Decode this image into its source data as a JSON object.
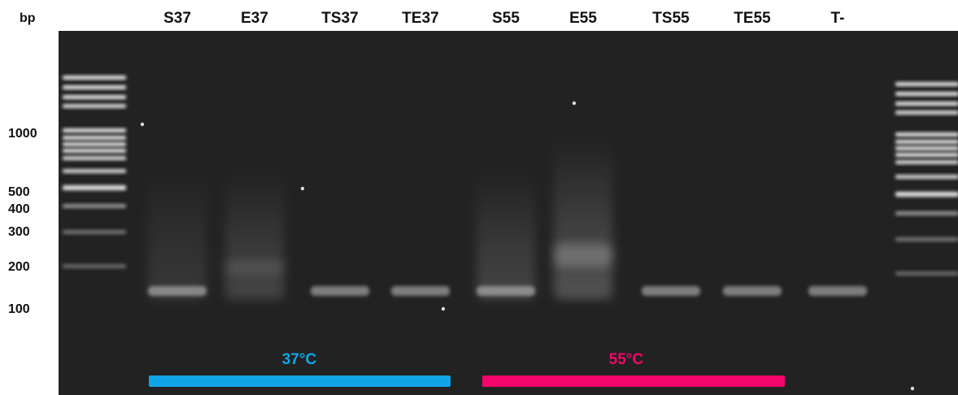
{
  "axis_unit": "bp",
  "lanes": [
    {
      "label": "S37",
      "band": "lower",
      "smear": "light"
    },
    {
      "label": "E37",
      "band": "faint",
      "smear": "medium"
    },
    {
      "label": "TS37",
      "band": "lower",
      "smear": "none"
    },
    {
      "label": "TE37",
      "band": "lower",
      "smear": "none"
    },
    {
      "label": "S55",
      "band": "lower",
      "smear": "medium"
    },
    {
      "label": "E55",
      "band": "upper",
      "smear": "strong"
    },
    {
      "label": "TS55",
      "band": "lower",
      "smear": "none"
    },
    {
      "label": "TE55",
      "band": "lower",
      "smear": "none"
    },
    {
      "label": "T-",
      "band": "lower",
      "smear": "none"
    }
  ],
  "ladder_labels": [
    "1000",
    "500",
    "400",
    "300",
    "200",
    "100"
  ],
  "groups": [
    {
      "label": "37°C",
      "color": "#0fa5e6"
    },
    {
      "label": "55°C",
      "color": "#f5066b"
    }
  ],
  "colors": {
    "gel": "#222222",
    "band": "#d8d8d8"
  }
}
